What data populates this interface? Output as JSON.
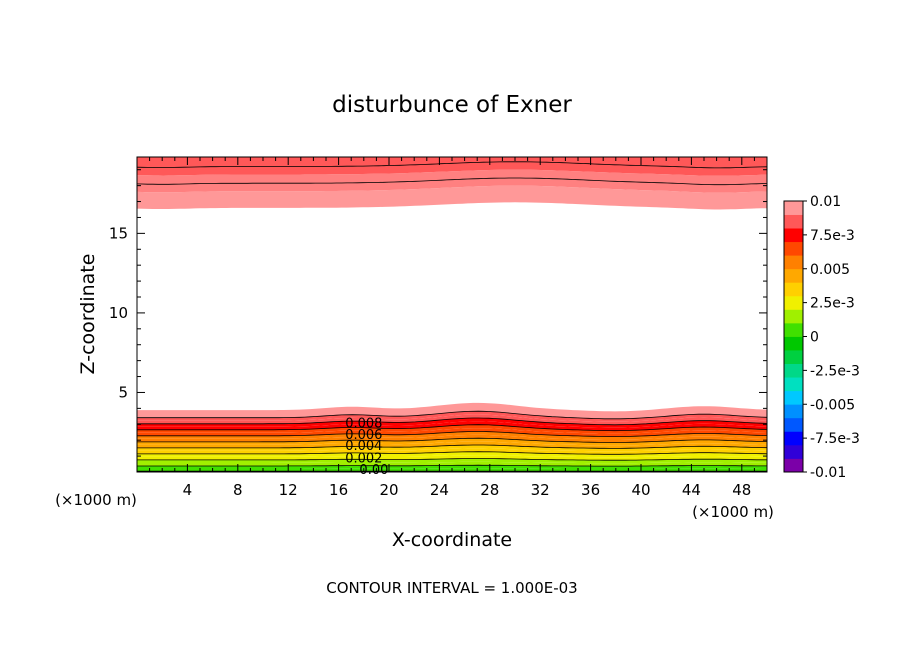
{
  "chart_data": {
    "type": "contour",
    "title": "disturbunce of Exner",
    "xlabel": "X-coordinate",
    "ylabel": "Z-coordinate",
    "x_unit": "(×1000 m)",
    "y_unit": "(×1000 m)",
    "footer": "CONTOUR INTERVAL = 1.000E-03",
    "xlim": [
      0,
      50
    ],
    "ylim": [
      0,
      19.8
    ],
    "x_ticks": [
      4,
      8,
      12,
      16,
      20,
      24,
      28,
      32,
      36,
      40,
      44,
      48
    ],
    "y_ticks": [
      5,
      10,
      15
    ],
    "contour_interval": 0.001,
    "contour_labels": [
      {
        "text": "0.008",
        "x": 18,
        "y": 3.1
      },
      {
        "text": "0.006",
        "x": 18,
        "y": 2.4
      },
      {
        "text": "0.004",
        "x": 18,
        "y": 1.7
      },
      {
        "text": "0.002",
        "x": 18,
        "y": 0.9
      },
      {
        "text": "0.00",
        "x": 18.8,
        "y": 0.2
      }
    ],
    "colorbar": {
      "min": -0.01,
      "max": 0.01,
      "tick_labels": [
        "0.01",
        "7.5e-3",
        "0.005",
        "2.5e-3",
        "0",
        "-2.5e-3",
        "-0.005",
        "-7.5e-3",
        "-0.01"
      ],
      "colors": [
        "#7b00a8",
        "#3000d8",
        "#0000ff",
        "#0058ff",
        "#0090ff",
        "#00c8ff",
        "#00e0c0",
        "#00d888",
        "#00d040",
        "#00c800",
        "#40e000",
        "#a0f000",
        "#f0f000",
        "#ffd000",
        "#ffa800",
        "#ff8000",
        "#ff4800",
        "#ff0000",
        "#ff5858",
        "#ff9898"
      ]
    },
    "bottom_base_height": 3.6,
    "top_base_height": 16.6
  }
}
